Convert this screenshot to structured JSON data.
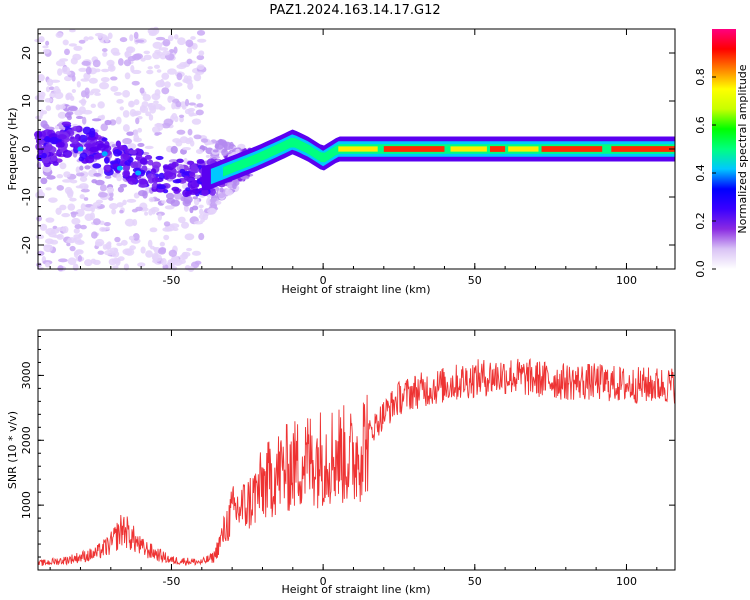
{
  "title": "PAZ1.2024.163.14.17.G12",
  "chart_data": [
    {
      "type": "heatmap",
      "xlabel": "Height of straight line (km)",
      "ylabel": "Frequency (Hz)",
      "xlim": [
        -94,
        116
      ],
      "ylim": [
        -25,
        25
      ],
      "xticks": [
        -50,
        0,
        50,
        100
      ],
      "yticks": [
        -20,
        -10,
        0,
        10,
        20
      ],
      "colorbar": {
        "label": "Normalized spectral amplitude",
        "range": [
          0,
          1
        ],
        "ticks": [
          "0.0",
          "0.2",
          "0.4",
          "0.6",
          "0.8"
        ],
        "stops": [
          "#ffffff",
          "#d9c3f5",
          "#8a2be2",
          "#3a00ff",
          "#0000ff",
          "#00c8ff",
          "#00ff80",
          "#00ff00",
          "#c8ff00",
          "#ffff00",
          "#ff8000",
          "#ff0000",
          "#ff0080"
        ]
      },
      "ridge": [
        {
          "x": -85,
          "y": 2
        },
        {
          "x": -75,
          "y": 0
        },
        {
          "x": -65,
          "y": -3
        },
        {
          "x": -55,
          "y": -5
        },
        {
          "x": -45,
          "y": -6
        },
        {
          "x": -38,
          "y": -6
        },
        {
          "x": -30,
          "y": -4
        },
        {
          "x": -22,
          "y": -2
        },
        {
          "x": -15,
          "y": 0
        },
        {
          "x": -10,
          "y": 1.5
        },
        {
          "x": -5,
          "y": 0
        },
        {
          "x": 0,
          "y": -2
        },
        {
          "x": 5,
          "y": 0
        },
        {
          "x": 20,
          "y": 0
        },
        {
          "x": 50,
          "y": 0
        },
        {
          "x": 100,
          "y": 0
        },
        {
          "x": 116,
          "y": 0
        }
      ]
    },
    {
      "type": "line",
      "xlabel": "Height of straight line (km)",
      "ylabel": "SNR (10 * v/v)",
      "xlim": [
        -94,
        116
      ],
      "ylim": [
        0,
        3700
      ],
      "xticks": [
        -50,
        0,
        50,
        100
      ],
      "yticks": [
        1000,
        2000,
        3000
      ],
      "color": "#ee3333",
      "series": [
        {
          "x": [
            -94,
            -85,
            -75,
            -70,
            -66,
            -60,
            -50,
            -40,
            -36,
            -33,
            -30,
            -25,
            -20,
            -15,
            -10,
            -5,
            0,
            5,
            10,
            15,
            20,
            25,
            30,
            35,
            40,
            50,
            60,
            70,
            80,
            90,
            100,
            110,
            116
          ],
          "values": [
            100,
            150,
            250,
            400,
            650,
            350,
            150,
            120,
            200,
            550,
            900,
            1000,
            1300,
            1500,
            1600,
            1700,
            1750,
            1800,
            1700,
            2100,
            2400,
            2650,
            2750,
            2800,
            2850,
            2950,
            3000,
            2950,
            2900,
            2900,
            2850,
            2850,
            2850
          ]
        }
      ]
    }
  ]
}
